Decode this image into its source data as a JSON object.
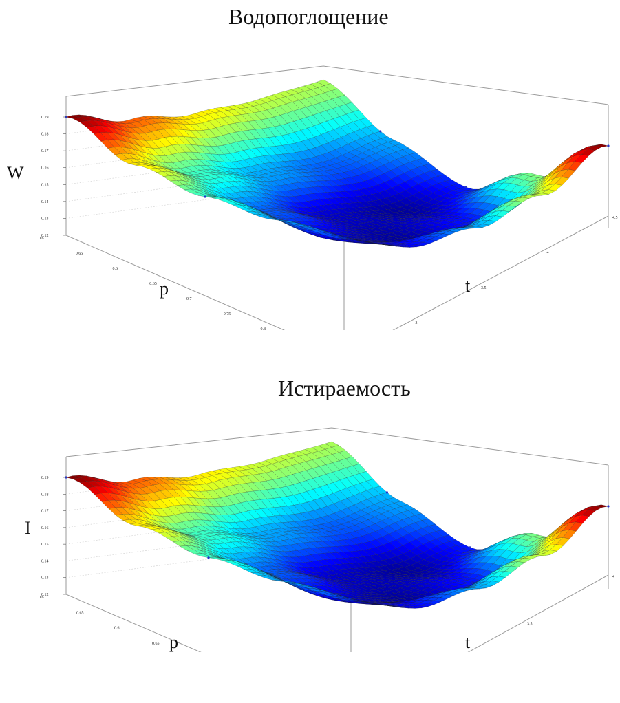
{
  "charts": [
    {
      "title": "Водопоглощение",
      "zlabel": "W",
      "xlabel": "p",
      "ylabel": "t",
      "ztick_labels": [
        "0.12",
        "0.13",
        "0.14",
        "0.15",
        "0.16",
        "0.17",
        "0.18",
        "0.19"
      ],
      "ptick_labels": [
        "0.6",
        "0.65",
        "0.6",
        "0.65",
        "0.7",
        "0.75",
        "0.8",
        "0.85",
        "0.9"
      ],
      "ttick_labels": [
        "2.5",
        "3",
        "3.5",
        "4",
        "4.5"
      ]
    },
    {
      "title": "Истираемость",
      "zlabel": "I",
      "xlabel": "p",
      "ylabel": "t",
      "ztick_labels": [
        "0.12",
        "0.13",
        "0.14",
        "0.15",
        "0.16",
        "0.17",
        "0.18",
        "0.19"
      ],
      "ptick_labels": [
        "0.6",
        "0.65",
        "0.6",
        "0.65",
        "0.7",
        "0.75",
        "0.8",
        "0.85",
        "0.9"
      ],
      "ttick_labels": [
        "2.5",
        "3",
        "3.5",
        "4"
      ]
    }
  ],
  "chart_data": [
    {
      "type": "surface",
      "title": "Водопоглощение",
      "xlabel": "p",
      "ylabel": "t",
      "zlabel": "W",
      "p_range": [
        0.6,
        0.9
      ],
      "t_range": [
        2.5,
        4.5
      ],
      "z_range": [
        0.12,
        0.19
      ],
      "grid": true,
      "colormap": "jet",
      "p_grid": [
        0.6,
        0.675,
        0.75,
        0.825,
        0.9
      ],
      "t_grid": [
        2.5,
        3.0,
        3.5,
        4.0,
        4.5
      ],
      "z": [
        [
          0.19,
          0.175,
          0.165,
          0.16,
          0.158
        ],
        [
          0.165,
          0.15,
          0.14,
          0.135,
          0.14
        ],
        [
          0.15,
          0.135,
          0.125,
          0.122,
          0.13
        ],
        [
          0.14,
          0.125,
          0.122,
          0.13,
          0.155
        ],
        [
          0.132,
          0.128,
          0.14,
          0.16,
          0.19
        ]
      ]
    },
    {
      "type": "surface",
      "title": "Истираемость",
      "xlabel": "p",
      "ylabel": "t",
      "zlabel": "I",
      "p_range": [
        0.6,
        0.9
      ],
      "t_range": [
        2.5,
        4.5
      ],
      "z_range": [
        0.12,
        0.19
      ],
      "grid": true,
      "colormap": "jet",
      "p_grid": [
        0.6,
        0.675,
        0.75,
        0.825,
        0.9
      ],
      "t_grid": [
        2.5,
        3.0,
        3.5,
        4.0,
        4.5
      ],
      "z": [
        [
          0.19,
          0.175,
          0.165,
          0.16,
          0.158
        ],
        [
          0.165,
          0.15,
          0.14,
          0.135,
          0.14
        ],
        [
          0.15,
          0.135,
          0.125,
          0.122,
          0.13
        ],
        [
          0.14,
          0.125,
          0.122,
          0.13,
          0.155
        ],
        [
          0.132,
          0.128,
          0.14,
          0.16,
          0.19
        ]
      ]
    }
  ]
}
